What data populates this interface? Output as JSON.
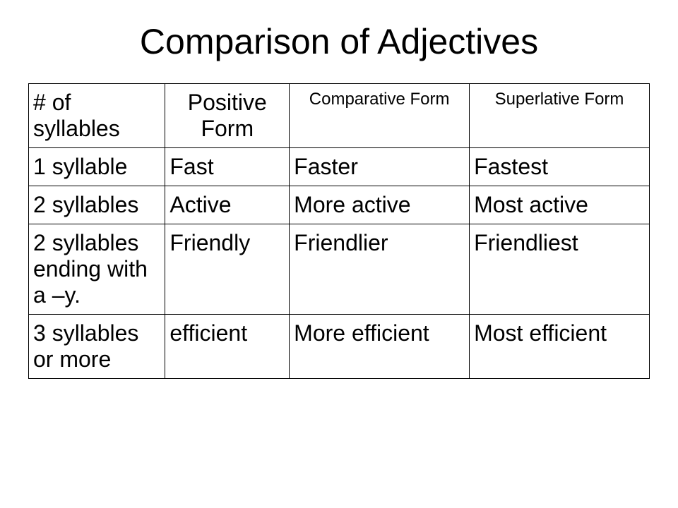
{
  "title": "Comparison of Adjectives",
  "table": {
    "type": "table",
    "background_color": "#ffffff",
    "border_color": "#000000",
    "text_color": "#000000",
    "title_fontsize": 50,
    "header_large_fontsize": 32,
    "header_small_fontsize": 24,
    "cell_fontsize": 32,
    "columns": [
      {
        "label": "# of syllables",
        "width_pct": 22,
        "align": "left",
        "size": "large"
      },
      {
        "label": "Positive Form",
        "width_pct": 20,
        "align": "center",
        "size": "large"
      },
      {
        "label": "Comparative Form",
        "width_pct": 29,
        "align": "center",
        "size": "small"
      },
      {
        "label": "Superlative Form",
        "width_pct": 29,
        "align": "center",
        "size": "small"
      }
    ],
    "rows": [
      [
        "1 syllable",
        "Fast",
        "Faster",
        "Fastest"
      ],
      [
        "2 syllables",
        "Active",
        "More active",
        "Most active"
      ],
      [
        "2 syllables ending with a –y.",
        "Friendly",
        "Friendlier",
        "Friendliest"
      ],
      [
        "3 syllables or more",
        "efficient",
        "More efficient",
        "Most efficient"
      ]
    ]
  }
}
